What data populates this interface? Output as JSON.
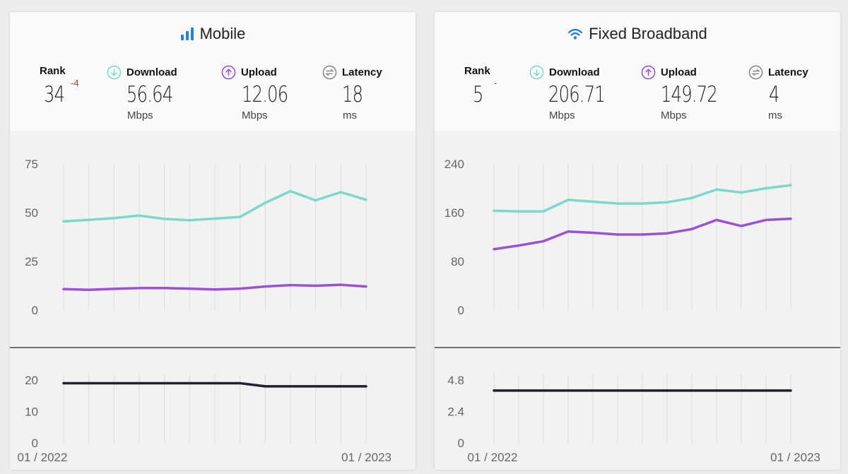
{
  "panels": [
    {
      "title": "Mobile",
      "icon": "signal-bars-icon",
      "metrics": {
        "rank": {
          "label": "Rank",
          "value": "34",
          "change": "-4"
        },
        "download": {
          "label": "Download",
          "value": "56.64",
          "unit": "Mbps"
        },
        "upload": {
          "label": "Upload",
          "value": "12.06",
          "unit": "Mbps"
        },
        "latency": {
          "label": "Latency",
          "value": "18",
          "unit": "ms"
        }
      }
    },
    {
      "title": "Fixed Broadband",
      "icon": "wifi-icon",
      "metrics": {
        "rank": {
          "label": "Rank",
          "value": "5",
          "change": "-"
        },
        "download": {
          "label": "Download",
          "value": "206.71",
          "unit": "Mbps"
        },
        "upload": {
          "label": "Upload",
          "value": "149.72",
          "unit": "Mbps"
        },
        "latency": {
          "label": "Latency",
          "value": "4",
          "unit": "ms"
        }
      }
    }
  ],
  "colors": {
    "download": "#7ad9c8",
    "upload": "#9b51d6",
    "latency": "#20202e",
    "accent": "#2d7fd3"
  },
  "chart_data": [
    {
      "type": "line",
      "x": [
        "01 / 2022",
        "02 / 2022",
        "03 / 2022",
        "04 / 2022",
        "05 / 2022",
        "06 / 2022",
        "07 / 2022",
        "08 / 2022",
        "09 / 2022",
        "10 / 2022",
        "11 / 2022",
        "12 / 2022",
        "01 / 2023"
      ],
      "x_tick_labels": [
        "01 / 2022",
        "01 / 2023"
      ],
      "ylim": [
        0,
        75
      ],
      "y_ticks": [
        "0",
        "25",
        "50",
        "75"
      ],
      "series": [
        {
          "key": "download",
          "values": [
            45.5,
            46.3,
            47.2,
            48.5,
            46.8,
            46.1,
            46.9,
            47.8,
            55.0,
            61.0,
            56.3,
            60.5,
            56.6
          ]
        },
        {
          "key": "upload",
          "values": [
            10.8,
            10.4,
            10.9,
            11.3,
            11.3,
            11.0,
            10.6,
            11.0,
            12.1,
            12.8,
            12.5,
            13.0,
            12.1
          ]
        }
      ],
      "sub_chart": {
        "ylim": [
          0,
          20
        ],
        "y_ticks": [
          "0",
          "10",
          "20"
        ],
        "series": [
          {
            "key": "latency",
            "values": [
              19,
              19,
              19,
              19,
              19,
              19,
              19,
              19,
              18,
              18,
              18,
              18,
              18
            ]
          }
        ]
      }
    },
    {
      "type": "line",
      "x": [
        "01 / 2022",
        "02 / 2022",
        "03 / 2022",
        "04 / 2022",
        "05 / 2022",
        "06 / 2022",
        "07 / 2022",
        "08 / 2022",
        "09 / 2022",
        "10 / 2022",
        "11 / 2022",
        "12 / 2022",
        "01 / 2023"
      ],
      "x_tick_labels": [
        "01 / 2022",
        "01 / 2023"
      ],
      "ylim": [
        0,
        240
      ],
      "y_ticks": [
        "0",
        "80",
        "160",
        "240"
      ],
      "series": [
        {
          "key": "download",
          "values": [
            163,
            162,
            162,
            181,
            178,
            175,
            175,
            177,
            184,
            198,
            193,
            200,
            205
          ]
        },
        {
          "key": "upload",
          "values": [
            100,
            106,
            113,
            129,
            127,
            124,
            124,
            126,
            133,
            148,
            138,
            148,
            150
          ]
        }
      ],
      "sub_chart": {
        "ylim": [
          0,
          4.8
        ],
        "y_ticks": [
          "0",
          "2.4",
          "4.8"
        ],
        "series": [
          {
            "key": "latency",
            "values": [
              4,
              4,
              4,
              4,
              4,
              4,
              4,
              4,
              4,
              4,
              4,
              4,
              4
            ]
          }
        ]
      }
    }
  ]
}
